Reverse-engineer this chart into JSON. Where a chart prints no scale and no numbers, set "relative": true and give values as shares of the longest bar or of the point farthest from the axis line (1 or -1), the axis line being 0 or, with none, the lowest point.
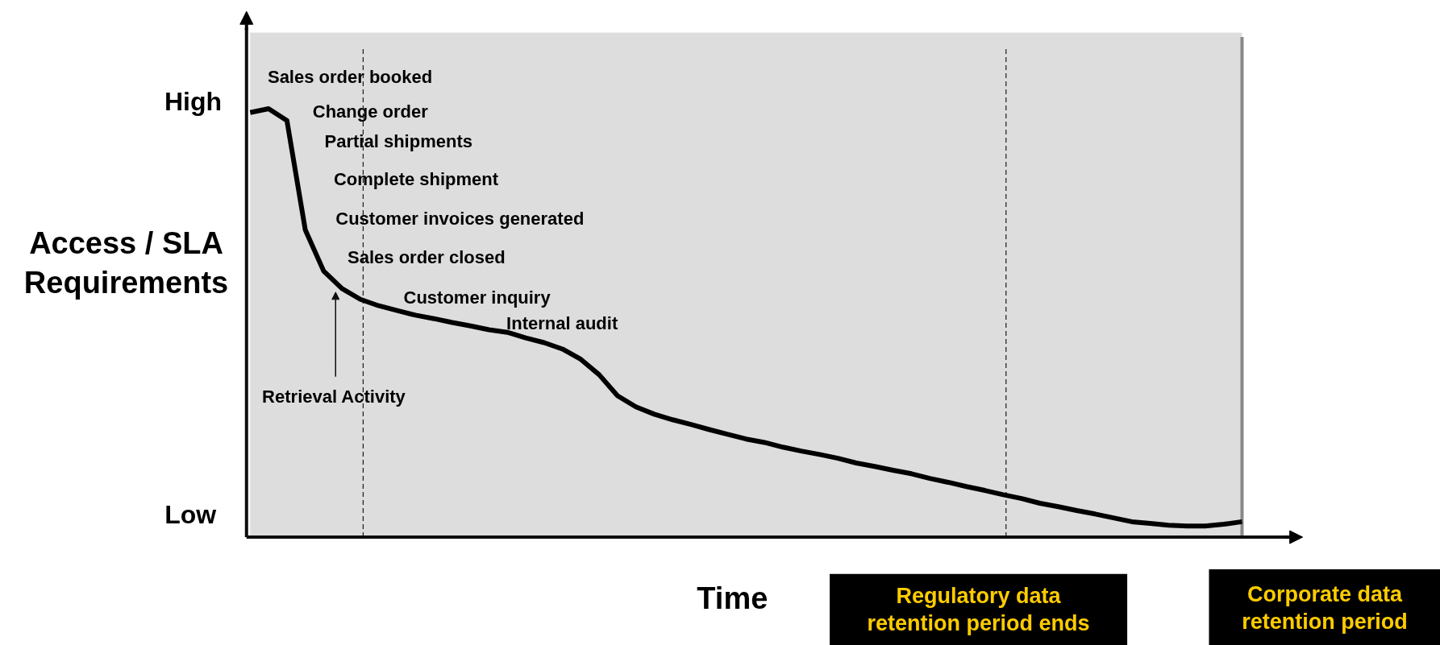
{
  "chart_data": {
    "type": "line",
    "relative": true,
    "xlabel": "Time",
    "ylabel": "Access / SLA\nRequirements",
    "categories": [
      null,
      null,
      null,
      null,
      null,
      null,
      null,
      null,
      null,
      null,
      null,
      null,
      null,
      null,
      null,
      null,
      null,
      null,
      null,
      null,
      null,
      null,
      null,
      null,
      null,
      null,
      null,
      null,
      null,
      null,
      null,
      null,
      null,
      null,
      null,
      null,
      null,
      null,
      null,
      null,
      null,
      null,
      null,
      null,
      null,
      null,
      null,
      null,
      null,
      null,
      null,
      null,
      null,
      null,
      null
    ],
    "series": [
      {
        "color": "#000000",
        "values": [
          0.991,
          1,
          0.972,
          0.717,
          0.621,
          0.58,
          0.555,
          0.54,
          0.529,
          0.518,
          0.51,
          0.501,
          0.493,
          0.484,
          0.478,
          0.465,
          0.454,
          0.439,
          0.415,
          0.379,
          0.33,
          0.304,
          0.287,
          0.274,
          0.263,
          0.251,
          0.24,
          0.229,
          0.221,
          0.21,
          0.201,
          0.193,
          0.184,
          0.173,
          0.165,
          0.156,
          0.148,
          0.137,
          0.128,
          0.118,
          0.109,
          0.099,
          0.09,
          0.079,
          0.071,
          0.062,
          0.054,
          0.045,
          0.036,
          0.032,
          0.028,
          0.026,
          0.026,
          0.03,
          0.036
        ]
      }
    ],
    "line_style": "solid",
    "annotations": [
      "Sales order booked",
      "Change order",
      "Partial shipments",
      "Complete shipment",
      "Customer invoices generated",
      "Sales order closed",
      "Customer inquiry",
      "Internal audit",
      "Retrieval Activity",
      "High",
      "Low",
      "Corporate data\nretention period",
      "Regulatory data\nretention period ends"
    ]
  }
}
